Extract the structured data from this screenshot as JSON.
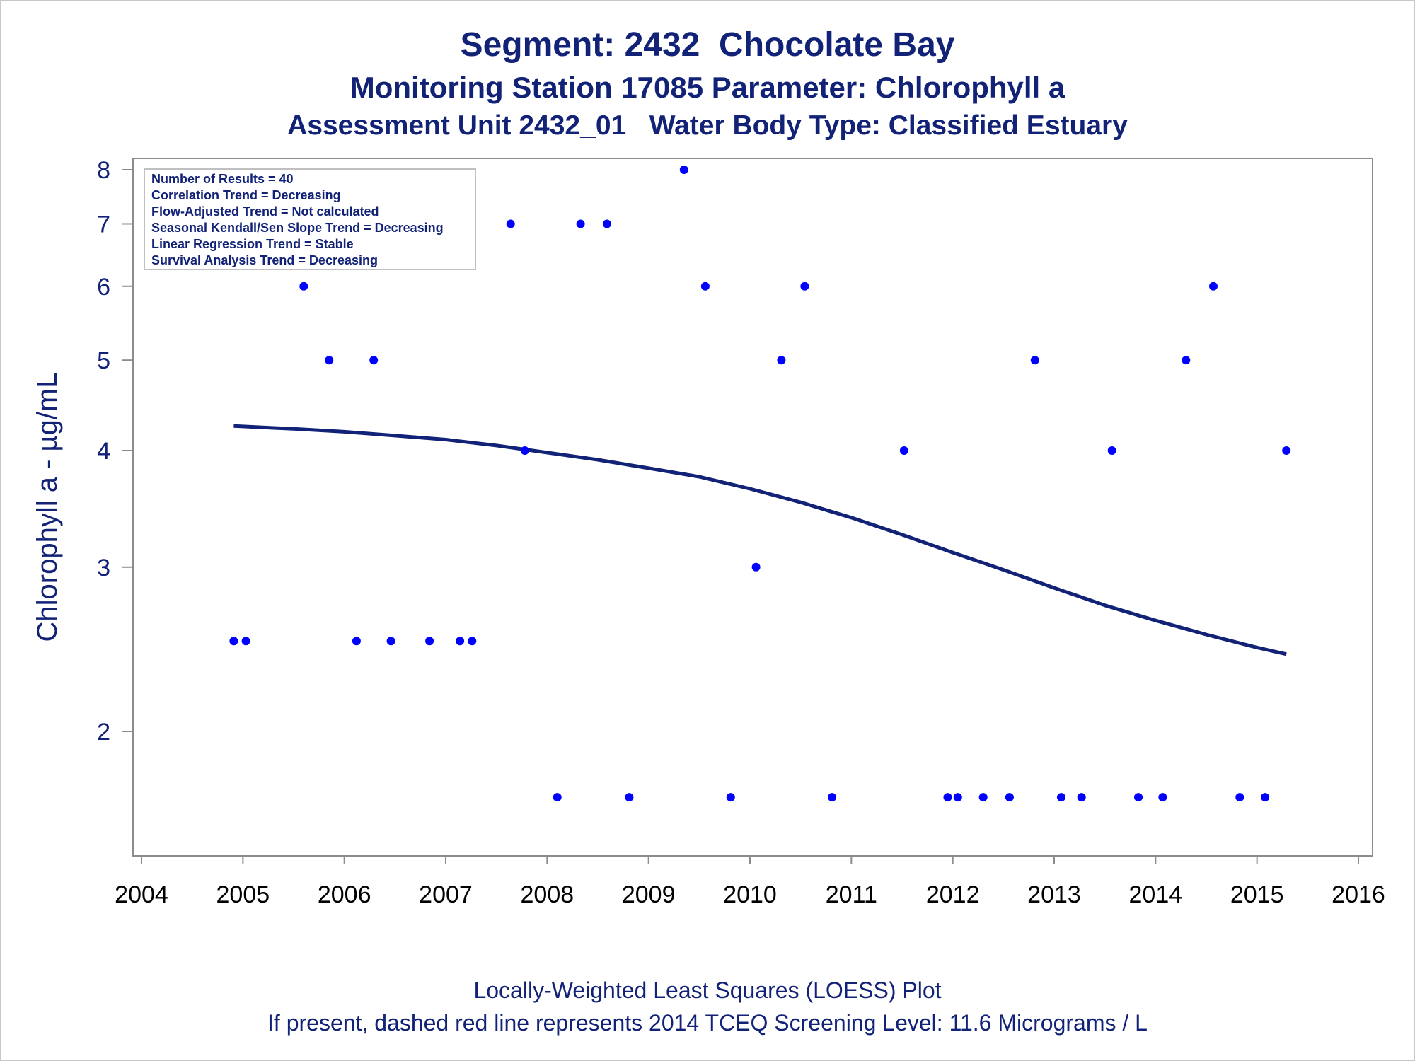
{
  "chart_data": {
    "type": "scatter",
    "title": "Segment: 2432  Chocolate Bay",
    "subtitle": "Monitoring Station 17085 Parameter: Chlorophyll a",
    "subtitle2": "Assessment Unit 2432_01   Water Body Type: Classified Estuary",
    "ylabel": "Chlorophyll a -  µg/mL",
    "xlabel": "",
    "footnote1": "Locally-Weighted Least Squares (LOESS) Plot",
    "footnote2": "If present, dashed red line represents 2014 TCEQ Screening Level: 11.6 Micrograms / L",
    "y_scale": "log",
    "xlim": [
      2004,
      2016
    ],
    "ylim": [
      1.6,
      8.2
    ],
    "x_ticks": [
      "2004",
      "2005",
      "2006",
      "2007",
      "2008",
      "2009",
      "2010",
      "2011",
      "2012",
      "2013",
      "2014",
      "2015",
      "2016"
    ],
    "y_ticks": [
      "2",
      "3",
      "4",
      "5",
      "6",
      "7",
      "8"
    ],
    "grid": false,
    "legend_position": "top-left",
    "stats_box": [
      "Number of Results = 40",
      "Correlation Trend = Decreasing",
      "Flow-Adjusted Trend = Not calculated",
      "Seasonal Kendall/Sen Slope Trend = Decreasing",
      "Linear Regression Trend = Stable",
      "Survival Analysis Trend = Decreasing"
    ],
    "series": [
      {
        "type": "scatter",
        "color": "#0000ff",
        "x": [
          2004.91,
          2005.03,
          2005.41,
          2005.6,
          2005.85,
          2006.12,
          2006.29,
          2006.46,
          2006.84,
          2007.14,
          2007.26,
          2007.64,
          2007.78,
          2008.1,
          2008.33,
          2008.59,
          2008.81,
          2009.35,
          2009.56,
          2009.81,
          2010.06,
          2010.31,
          2010.54,
          2010.81,
          2011.52,
          2011.95,
          2012.05,
          2012.3,
          2012.56,
          2012.81,
          2013.07,
          2013.27,
          2013.57,
          2013.83,
          2014.07,
          2014.3,
          2014.57,
          2014.83,
          2015.08,
          2015.29
        ],
        "y": [
          2.5,
          2.5,
          7,
          6,
          5,
          2.5,
          5,
          2.5,
          2.5,
          2.5,
          2.5,
          7,
          4,
          1.7,
          7,
          7,
          1.7,
          8,
          6,
          1.7,
          3,
          5,
          6,
          1.7,
          4,
          1.7,
          1.7,
          1.7,
          1.7,
          5,
          1.7,
          1.7,
          4,
          1.7,
          1.7,
          5,
          6,
          1.7,
          1.7,
          4
        ]
      },
      {
        "type": "line",
        "name": "LOESS",
        "color": "#112277",
        "x": [
          2004.91,
          2005.5,
          2006.0,
          2006.5,
          2007.0,
          2007.5,
          2008.0,
          2008.5,
          2009.0,
          2009.5,
          2010.0,
          2010.5,
          2011.0,
          2011.5,
          2012.0,
          2012.5,
          2013.0,
          2013.5,
          2014.0,
          2014.5,
          2015.0,
          2015.29
        ],
        "y": [
          4.25,
          4.22,
          4.19,
          4.15,
          4.11,
          4.05,
          3.98,
          3.91,
          3.83,
          3.75,
          3.64,
          3.52,
          3.39,
          3.25,
          3.11,
          2.98,
          2.85,
          2.73,
          2.63,
          2.54,
          2.46,
          2.42
        ]
      }
    ]
  }
}
